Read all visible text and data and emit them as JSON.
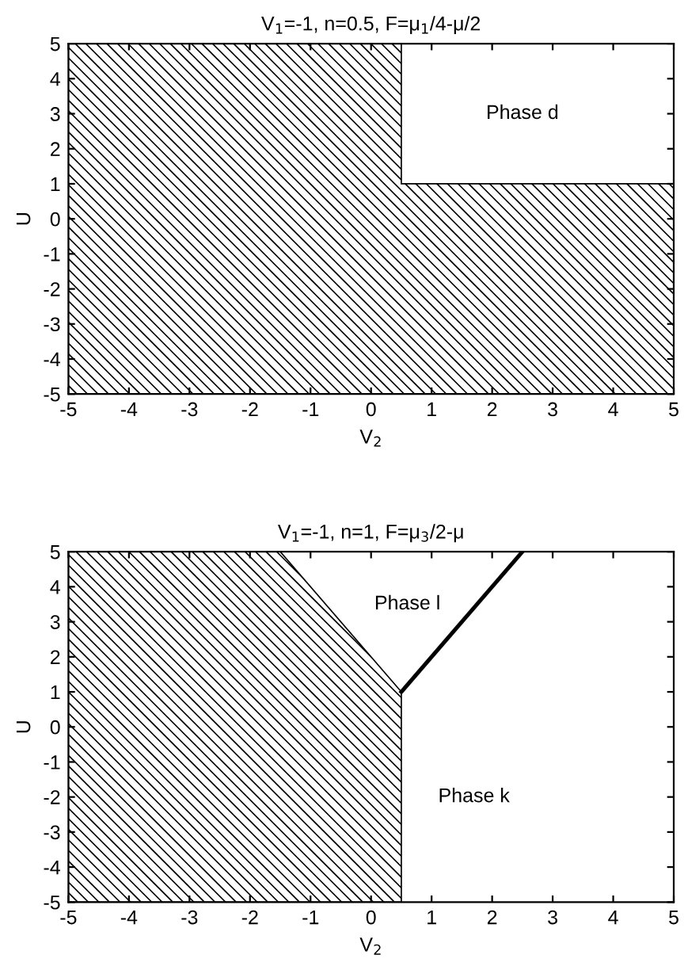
{
  "chart_data": [
    {
      "type": "area",
      "title": "V$_{1}$=-1, n=0.5, F=μ$_{1}$/4-μ/2",
      "xlabel": "V$_{2}$",
      "ylabel": "U",
      "series": [
        {
          "color": "#000000",
          "x": [
            -5,
            0.5,
            0.5,
            5,
            5,
            -5
          ],
          "values": [
            5,
            5,
            1,
            1,
            -5,
            -5
          ]
        }
      ],
      "xlim": [
        -5,
        5
      ],
      "ylim": [
        -5,
        5
      ],
      "xticks": [
        -5,
        -4,
        -3,
        -2,
        -1,
        0,
        1,
        2,
        3,
        4,
        5
      ],
      "yticks": [
        -5,
        -4,
        -3,
        -2,
        -1,
        0,
        1,
        2,
        3,
        4,
        5
      ],
      "annotations": [
        "Phase d"
      ],
      "grid": false
    },
    {
      "type": "area",
      "title": "V$_{1}$=-1, n=1, F=μ$_{3}$/2-μ",
      "xlabel": "V$_{2}$",
      "ylabel": "U",
      "series": [
        {
          "color": "#000000",
          "x": [
            -5,
            -1.5,
            0.5,
            0.5,
            -5
          ],
          "values": [
            5,
            5,
            1,
            -5,
            -5
          ]
        },
        {
          "type": "line",
          "color": "#000000",
          "x": [
            0.5,
            2.5
          ],
          "values": [
            1,
            5
          ]
        }
      ],
      "xlim": [
        -5,
        5
      ],
      "ylim": [
        -5,
        5
      ],
      "xticks": [
        -5,
        -4,
        -3,
        -2,
        -1,
        0,
        1,
        2,
        3,
        4,
        5
      ],
      "yticks": [
        -5,
        -4,
        -3,
        -2,
        -1,
        0,
        1,
        2,
        3,
        4,
        5
      ],
      "annotations": [
        "Phase l",
        "Phase k"
      ],
      "grid": false
    }
  ]
}
